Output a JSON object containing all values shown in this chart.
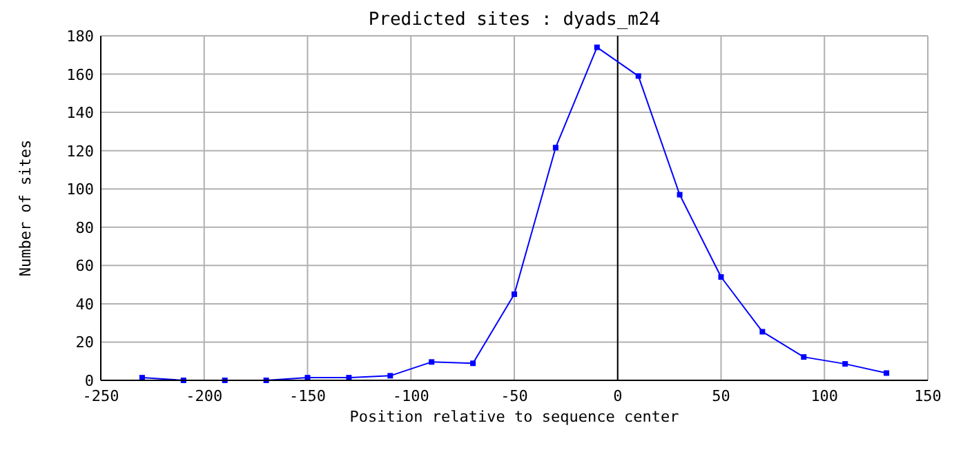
{
  "chart_data": {
    "type": "line",
    "title": "Predicted sites : dyads_m24",
    "xlabel": "Position relative to sequence center",
    "ylabel": "Number of sites",
    "x": [
      -230,
      -210,
      -190,
      -170,
      -150,
      -130,
      -110,
      -90,
      -70,
      -50,
      -30,
      -10,
      10,
      30,
      50,
      70,
      90,
      110,
      130
    ],
    "series": [
      {
        "color": "#0000ff",
        "values": [
          1.4,
          0,
          0,
          0,
          1.4,
          1.4,
          2.4,
          9.6,
          8.9,
          45,
          121.6,
          174,
          159,
          97,
          54,
          25.4,
          12.2,
          8.6,
          3.8
        ]
      }
    ],
    "xlim": [
      -250,
      150
    ],
    "xticks": [
      -250,
      -200,
      -150,
      -100,
      -50,
      0,
      50,
      100,
      150
    ],
    "ylim": [
      0,
      180
    ],
    "yticks": [
      0,
      20,
      40,
      60,
      80,
      100,
      120,
      140,
      160,
      180
    ],
    "grid": true,
    "marker": "square",
    "line_style": "solid",
    "ref_lines": [
      {
        "axis": "x",
        "value": 0,
        "color": "#000000"
      }
    ]
  }
}
